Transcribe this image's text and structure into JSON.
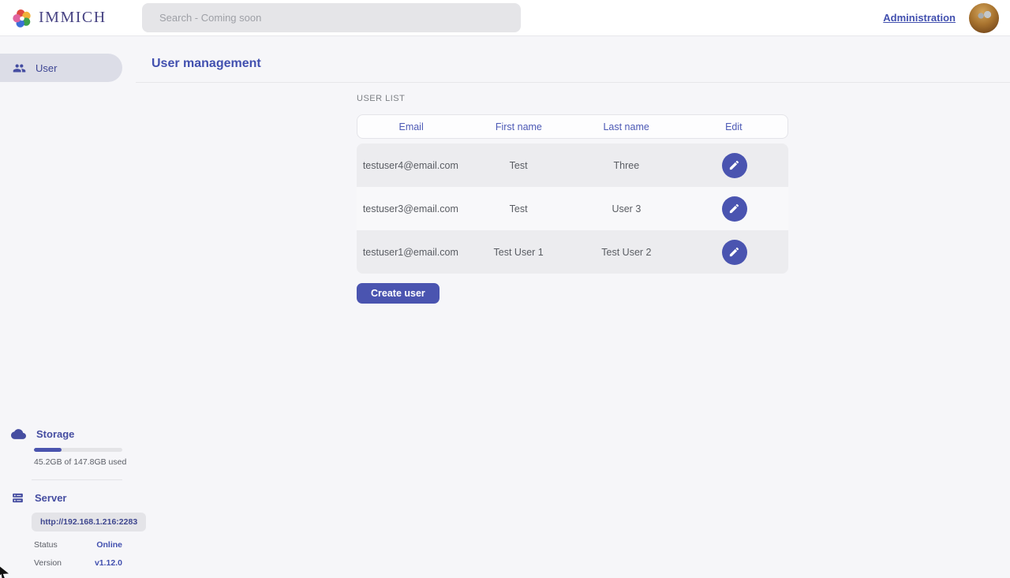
{
  "header": {
    "logo_text": "IMMICH",
    "search_placeholder": "Search - Coming soon",
    "admin_link": "Administration"
  },
  "sidebar": {
    "nav": [
      {
        "label": "User"
      }
    ],
    "storage": {
      "title": "Storage",
      "usage_text": "45.2GB of 147.8GB used",
      "percent_used": 31
    },
    "server": {
      "title": "Server",
      "url": "http://192.168.1.216:2283",
      "status_label": "Status",
      "status_value": "Online",
      "version_label": "Version",
      "version_value": "v1.12.0"
    }
  },
  "main": {
    "page_title": "User management",
    "section_label": "USER LIST",
    "table": {
      "columns": [
        "Email",
        "First name",
        "Last name",
        "Edit"
      ],
      "rows": [
        {
          "email": "testuser4@email.com",
          "first_name": "Test",
          "last_name": "Three"
        },
        {
          "email": "testuser3@email.com",
          "first_name": "Test",
          "last_name": "User 3"
        },
        {
          "email": "testuser1@email.com",
          "first_name": "Test User 1",
          "last_name": "Test User 2"
        }
      ]
    },
    "create_button_label": "Create user"
  },
  "colors": {
    "accent": "#4a54b0",
    "primary_text": "#4250af"
  }
}
